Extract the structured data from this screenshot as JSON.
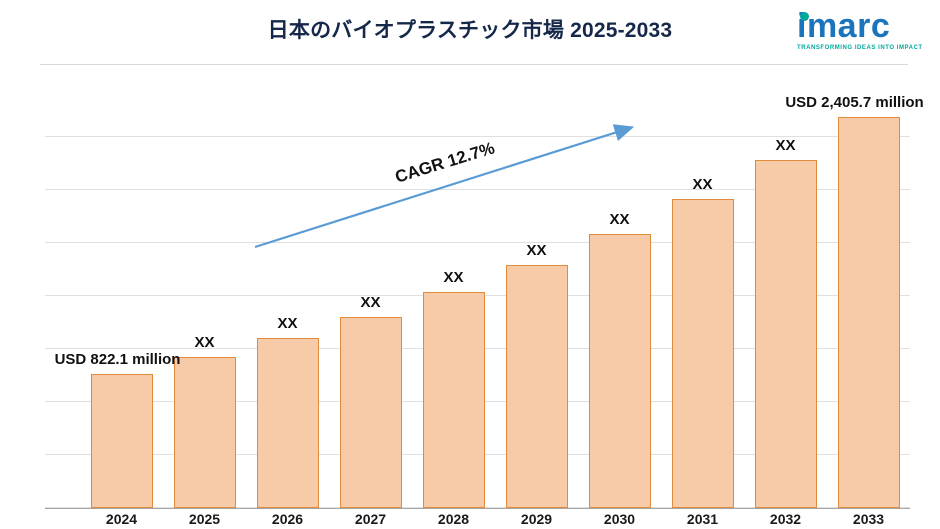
{
  "header": {
    "title": "日本のバイオプラスチック市場 2025-2033"
  },
  "logo": {
    "name": "imarc",
    "tagline": "TRANSFORMING IDEAS INTO IMPACT",
    "brand_blue": "#1b75bc",
    "brand_teal": "#00a79d"
  },
  "annotations": {
    "cagr_label": "CAGR 12.7%",
    "arrow_color": "#5b9bd5",
    "first_bar_label": "USD 822.1 million",
    "last_bar_label": "USD 2,405.7 million"
  },
  "chart_data": {
    "type": "bar",
    "title": "日本のバイオプラスチック市場 2025-2033",
    "categories": [
      "2024",
      "2025",
      "2026",
      "2027",
      "2028",
      "2029",
      "2030",
      "2031",
      "2032",
      "2033"
    ],
    "values": [
      822.1,
      926.5,
      1044.2,
      1176.8,
      1326.3,
      1494.7,
      1684.5,
      1898.4,
      2139.5,
      2405.7
    ],
    "bar_labels": [
      "USD 822.1 million",
      "XX",
      "XX",
      "XX",
      "XX",
      "XX",
      "XX",
      "XX",
      "XX",
      "USD 2,405.7 million"
    ],
    "unit": "USD million",
    "cagr": "12.7%",
    "ylim": [
      0,
      2600
    ],
    "grid": true,
    "legend_position": "none",
    "bar_fill": "#f8cba8",
    "bar_border": "#e08a3c"
  }
}
